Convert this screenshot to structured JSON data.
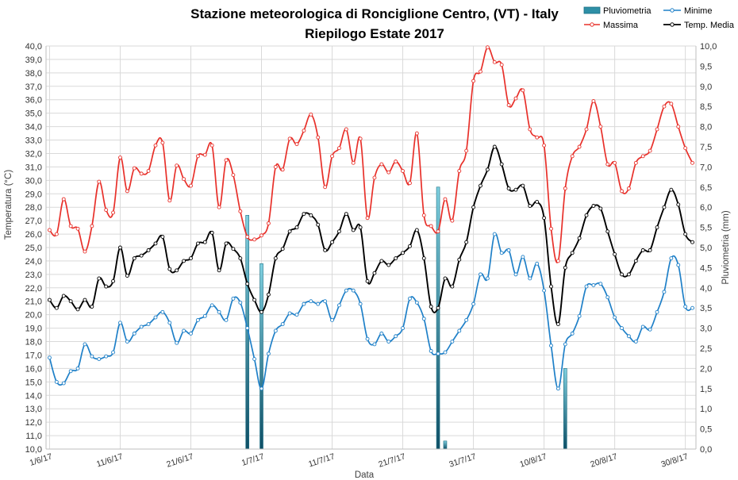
{
  "chart_data": {
    "type": "line",
    "title": "Stazione meteorologica di Ronciglione Centro, (VT) - Italy",
    "subtitle": "Riepilogo Estate 2017",
    "xlabel": "Data",
    "ylabel": "Temperatura (°C)",
    "y2label": "Pluviometria (mm)",
    "ylim": [
      10,
      40
    ],
    "y2lim": [
      0,
      10
    ],
    "grid": true,
    "legend_position": "top-right",
    "x_tick_labels": [
      "1/6/17",
      "11/6/17",
      "21/6/17",
      "1/7/17",
      "11/7/17",
      "21/7/17",
      "31/7/17",
      "10/8/17",
      "20/8/17",
      "30/8/17"
    ],
    "y_tick_labels": [
      "10,0",
      "11,0",
      "12,0",
      "13,0",
      "14,0",
      "15,0",
      "16,0",
      "17,0",
      "18,0",
      "19,0",
      "20,0",
      "21,0",
      "22,0",
      "23,0",
      "24,0",
      "25,0",
      "26,0",
      "27,0",
      "28,0",
      "29,0",
      "30,0",
      "31,0",
      "32,0",
      "33,0",
      "34,0",
      "35,0",
      "36,0",
      "37,0",
      "38,0",
      "39,0",
      "40,0"
    ],
    "y2_tick_labels": [
      "0,0",
      "0,5",
      "1,0",
      "1,5",
      "2,0",
      "2,5",
      "3,0",
      "3,5",
      "4,0",
      "4,5",
      "5,0",
      "5,5",
      "6,0",
      "6,5",
      "7,0",
      "7,5",
      "8,0",
      "8,5",
      "9,0",
      "9,5",
      "10,0"
    ],
    "start_date": "2017-06-01",
    "series": [
      {
        "name": "Massima",
        "color": "#e8302a",
        "values": [
          26.3,
          26.0,
          28.6,
          26.6,
          26.4,
          24.7,
          26.6,
          29.9,
          27.8,
          27.6,
          31.7,
          29.2,
          30.9,
          30.5,
          30.7,
          32.6,
          32.8,
          28.5,
          31.1,
          30.1,
          29.6,
          31.8,
          31.9,
          32.6,
          28.0,
          31.5,
          30.4,
          27.7,
          25.8,
          25.6,
          25.9,
          26.8,
          31.0,
          30.8,
          33.1,
          32.7,
          33.7,
          34.9,
          33.2,
          29.5,
          31.8,
          32.4,
          33.8,
          31.3,
          33.1,
          27.2,
          30.2,
          31.2,
          30.6,
          31.4,
          30.7,
          29.8,
          33.5,
          27.4,
          26.6,
          26.2,
          28.6,
          27.0,
          30.7,
          32.2,
          37.4,
          38.1,
          39.9,
          38.8,
          38.6,
          35.6,
          36.1,
          36.7,
          33.8,
          33.2,
          32.6,
          26.4,
          24.0,
          29.4,
          31.8,
          32.5,
          33.8,
          35.9,
          34.0,
          31.2,
          31.3,
          29.2,
          29.4,
          31.3,
          31.8,
          32.2,
          33.8,
          35.5,
          35.7,
          34.0,
          32.4,
          31.3
        ]
      },
      {
        "name": "Minime",
        "color": "#1f80c8",
        "values": [
          16.8,
          15.0,
          14.9,
          15.8,
          16.0,
          17.8,
          16.9,
          16.7,
          16.9,
          17.2,
          19.4,
          18.0,
          18.6,
          19.1,
          19.3,
          19.8,
          20.2,
          19.4,
          17.9,
          18.8,
          18.6,
          19.6,
          19.9,
          20.7,
          20.2,
          19.6,
          21.2,
          20.9,
          19.0,
          16.7,
          14.5,
          17.1,
          18.8,
          19.3,
          20.1,
          20.0,
          20.8,
          21.0,
          20.8,
          21.0,
          19.6,
          20.7,
          21.8,
          21.8,
          20.8,
          18.2,
          17.8,
          18.6,
          18.0,
          18.4,
          19.0,
          21.2,
          20.9,
          19.7,
          17.3,
          17.1,
          17.2,
          18.0,
          18.8,
          19.6,
          20.8,
          23.0,
          22.7,
          26.0,
          24.6,
          24.8,
          23.0,
          24.3,
          22.7,
          23.8,
          21.8,
          17.7,
          14.5,
          17.8,
          18.6,
          19.9,
          22.1,
          22.2,
          22.3,
          21.3,
          19.8,
          19.0,
          18.4,
          18.0,
          19.1,
          18.9,
          20.2,
          21.7,
          24.2,
          23.7,
          20.6,
          20.5
        ]
      },
      {
        "name": "Temp. Media",
        "color": "#000000",
        "values": [
          21.1,
          20.5,
          21.4,
          21.0,
          20.4,
          21.1,
          20.6,
          22.7,
          22.1,
          22.5,
          25.0,
          22.9,
          24.2,
          24.4,
          24.8,
          25.3,
          25.8,
          23.4,
          23.3,
          24.0,
          24.2,
          25.3,
          25.4,
          26.1,
          23.3,
          25.3,
          24.9,
          24.2,
          22.3,
          21.1,
          20.2,
          21.5,
          24.2,
          24.9,
          26.2,
          26.5,
          27.5,
          27.4,
          26.7,
          24.8,
          25.4,
          26.2,
          27.5,
          26.3,
          26.5,
          22.5,
          23.1,
          24.0,
          23.7,
          24.2,
          24.6,
          25.1,
          26.3,
          24.2,
          20.6,
          20.5,
          22.7,
          22.1,
          24.1,
          25.4,
          28.0,
          29.6,
          30.8,
          32.5,
          31.2,
          29.4,
          29.3,
          29.6,
          28.1,
          28.4,
          27.2,
          22.1,
          19.3,
          23.5,
          24.6,
          25.7,
          27.4,
          28.1,
          27.9,
          26.2,
          24.5,
          23.0,
          23.0,
          24.0,
          24.8,
          24.8,
          26.5,
          28.0,
          29.3,
          28.2,
          26.0,
          25.4
        ]
      },
      {
        "name": "Pluviometria",
        "color": "#2e8fa6",
        "axis": "secondary",
        "type": "bar",
        "bars": [
          {
            "date": "2017-06-29",
            "value": 5.8
          },
          {
            "date": "2017-07-01",
            "value": 4.6
          },
          {
            "date": "2017-07-26",
            "value": 6.5
          },
          {
            "date": "2017-07-27",
            "value": 0.2
          },
          {
            "date": "2017-08-13",
            "value": 2.0
          }
        ]
      }
    ]
  }
}
